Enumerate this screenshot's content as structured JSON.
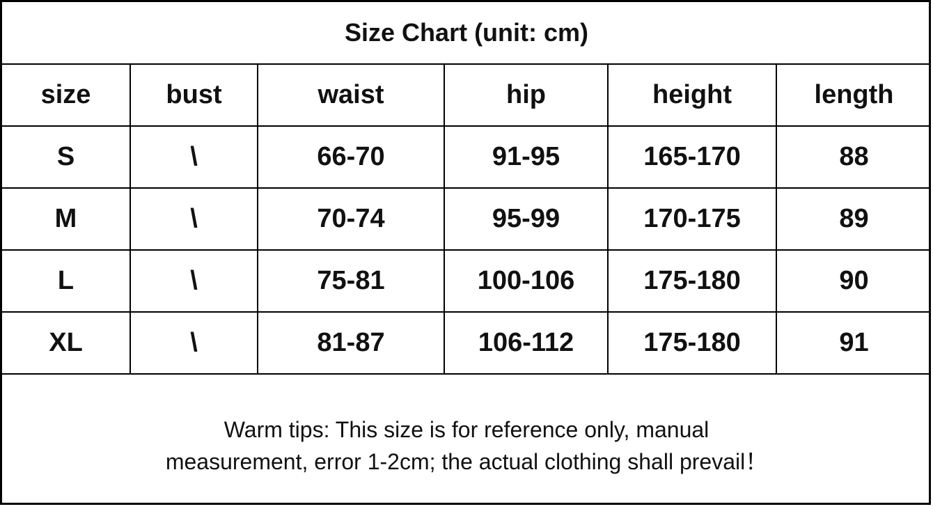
{
  "title": "Size Chart (unit: cm)",
  "columns": [
    "size",
    "bust",
    "waist",
    "hip",
    "height",
    "length"
  ],
  "rows": [
    [
      "S",
      "\\",
      "66-70",
      "91-95",
      "165-170",
      "88"
    ],
    [
      "M",
      "\\",
      "70-74",
      "95-99",
      "170-175",
      "89"
    ],
    [
      "L",
      "\\",
      "75-81",
      "100-106",
      "175-180",
      "90"
    ],
    [
      "XL",
      "\\",
      "81-87",
      "106-112",
      "175-180",
      "91"
    ]
  ],
  "footer": {
    "line1": "Warm tips: This size is for reference only, manual",
    "line2": "measurement, error 1-2cm; the actual clothing shall prevail！"
  }
}
